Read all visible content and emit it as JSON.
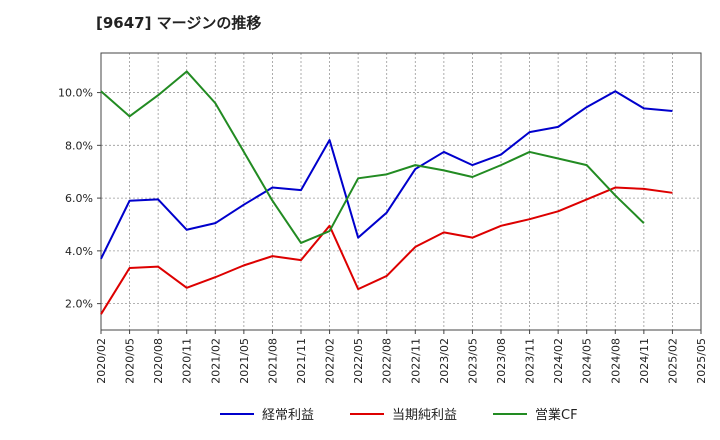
{
  "title": "[9647]  マージンの推移",
  "chart_data": {
    "type": "line",
    "title": "[9647]  マージンの推移",
    "xlabel": "",
    "ylabel": "",
    "ylim": [
      1.0,
      11.5
    ],
    "grid": true,
    "legend_position": "bottom",
    "categories": [
      "2020/02",
      "2020/05",
      "2020/08",
      "2020/11",
      "2021/02",
      "2021/05",
      "2021/08",
      "2021/11",
      "2022/02",
      "2022/05",
      "2022/08",
      "2022/11",
      "2023/02",
      "2023/05",
      "2023/08",
      "2023/11",
      "2024/02",
      "2024/05",
      "2024/08",
      "2024/11",
      "2025/02",
      "2025/05"
    ],
    "yticks": [
      2.0,
      4.0,
      6.0,
      8.0,
      10.0
    ],
    "ytick_labels": [
      "2.0%",
      "4.0%",
      "6.0%",
      "8.0%",
      "10.0%"
    ],
    "series": [
      {
        "name": "経常利益",
        "color": "#0000cc",
        "values": [
          3.7,
          5.9,
          5.95,
          4.8,
          5.05,
          5.75,
          6.4,
          6.3,
          8.2,
          4.5,
          5.45,
          7.1,
          7.75,
          7.25,
          7.65,
          8.5,
          8.7,
          9.45,
          10.05,
          9.4,
          9.3,
          null
        ]
      },
      {
        "name": "当期純利益",
        "color": "#dd0000",
        "values": [
          1.6,
          3.35,
          3.4,
          2.6,
          3.0,
          3.45,
          3.8,
          3.65,
          4.95,
          2.55,
          3.05,
          4.15,
          4.7,
          4.5,
          4.95,
          5.2,
          5.5,
          5.95,
          6.4,
          6.35,
          6.2,
          null
        ]
      },
      {
        "name": "営業CF",
        "color": "#228b22",
        "values": [
          10.05,
          9.1,
          9.9,
          10.8,
          9.6,
          7.75,
          5.9,
          4.3,
          4.75,
          6.75,
          6.9,
          7.25,
          7.05,
          6.8,
          7.25,
          7.75,
          7.5,
          7.25,
          6.1,
          5.05,
          null,
          null
        ]
      }
    ]
  }
}
